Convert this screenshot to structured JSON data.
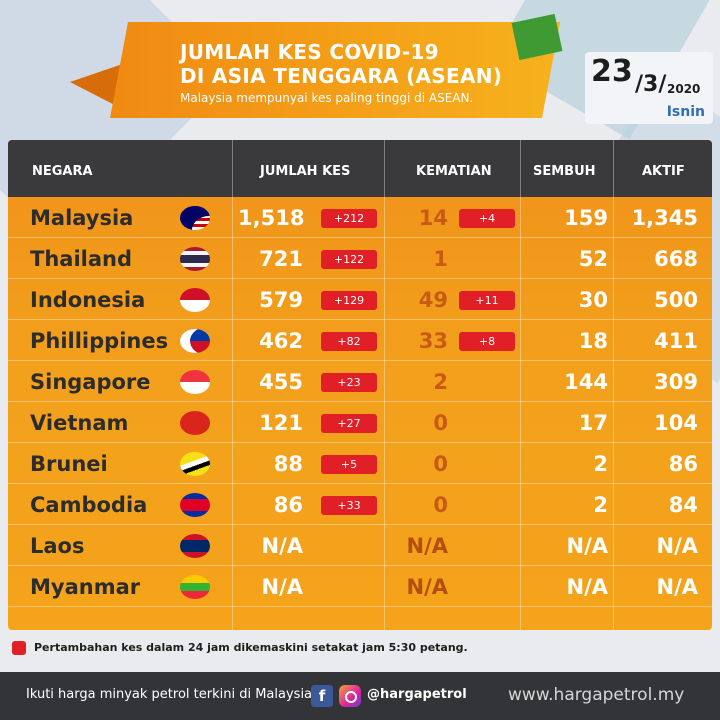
{
  "header": {
    "title_line1": "JUMLAH KES COVID-19",
    "title_line2": "DI ASIA TENGGARA (ASEAN)",
    "subtitle": "Malaysia mempunyai kes paling tinggi di ASEAN."
  },
  "date": {
    "day": "23",
    "month": "/3/",
    "year": "2020",
    "dayname": "Isnin"
  },
  "table": {
    "headers": {
      "country": "NEGARA",
      "cases": "JUMLAH KES",
      "deaths": "KEMATIAN",
      "recovered": "SEMBUH",
      "active": "AKTIF"
    },
    "rows": [
      {
        "country": "Malaysia",
        "cases": "1,518",
        "cases_new": "+212",
        "deaths": "14",
        "deaths_new": "+4",
        "recovered": "159",
        "active": "1,345"
      },
      {
        "country": "Thailand",
        "cases": "721",
        "cases_new": "+122",
        "deaths": "1",
        "deaths_new": "",
        "recovered": "52",
        "active": "668"
      },
      {
        "country": "Indonesia",
        "cases": "579",
        "cases_new": "+129",
        "deaths": "49",
        "deaths_new": "+11",
        "recovered": "30",
        "active": "500"
      },
      {
        "country": "Phillippines",
        "cases": "462",
        "cases_new": "+82",
        "deaths": "33",
        "deaths_new": "+8",
        "recovered": "18",
        "active": "411"
      },
      {
        "country": "Singapore",
        "cases": "455",
        "cases_new": "+23",
        "deaths": "2",
        "deaths_new": "",
        "recovered": "144",
        "active": "309"
      },
      {
        "country": "Vietnam",
        "cases": "121",
        "cases_new": "+27",
        "deaths": "0",
        "deaths_new": "",
        "recovered": "17",
        "active": "104"
      },
      {
        "country": "Brunei",
        "cases": "88",
        "cases_new": "+5",
        "deaths": "0",
        "deaths_new": "",
        "recovered": "2",
        "active": "86"
      },
      {
        "country": "Cambodia",
        "cases": "86",
        "cases_new": "+33",
        "deaths": "0",
        "deaths_new": "",
        "recovered": "2",
        "active": "84"
      },
      {
        "country": "Laos",
        "cases": "N/A",
        "cases_new": "",
        "deaths": "N/A",
        "deaths_new": "",
        "recovered": "N/A",
        "active": "N/A"
      },
      {
        "country": "Myanmar",
        "cases": "N/A",
        "cases_new": "",
        "deaths": "N/A",
        "deaths_new": "",
        "recovered": "N/A",
        "active": "N/A"
      }
    ]
  },
  "note": "Pertambahan kes dalam 24 jam dikemaskini setakat jam 5:30 petang.",
  "footer": {
    "text": "Ikuti harga minyak petrol terkini di Malaysia",
    "handle": "@hargapetrol",
    "site": "www.hargapetrol.my",
    "fb_glyph": "f"
  },
  "colors": {
    "orange": "#f08a12",
    "header_dark": "#3a3a3d",
    "badge_red": "#e01f26",
    "date_blue": "#2f6fb7"
  }
}
